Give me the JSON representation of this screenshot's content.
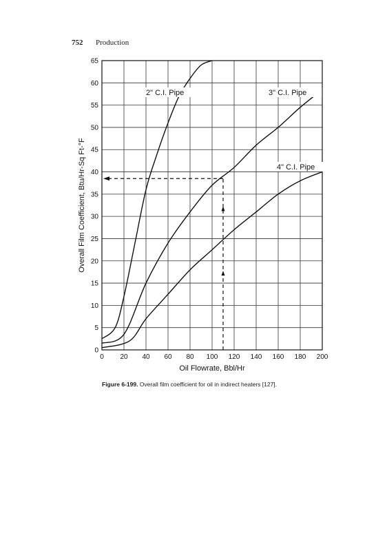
{
  "header": {
    "page_number": "752",
    "running_head": "Production"
  },
  "caption": {
    "label": "Figure 6-199.",
    "text": "Overall film coefficient for oil in indirect heaters [127]."
  },
  "chart_data": {
    "type": "line",
    "title": "",
    "xlabel": "Oil Flowrate, Bbl/Hr",
    "ylabel": "Overall Film Coefficient, Btu/Hr-Sq Ft-°F",
    "xlim": [
      0,
      200
    ],
    "ylim": [
      0,
      65
    ],
    "x_ticks": [
      0,
      20,
      40,
      60,
      80,
      100,
      120,
      140,
      160,
      180,
      200
    ],
    "y_ticks": [
      0,
      5,
      10,
      15,
      20,
      25,
      30,
      35,
      40,
      45,
      50,
      55,
      60,
      65
    ],
    "grid": true,
    "series": [
      {
        "name": "2\" C.I. Pipe",
        "x": [
          0,
          12,
          20,
          30,
          40,
          50,
          60,
          70,
          80,
          90,
          100
        ],
        "y": [
          2.5,
          5,
          12,
          24,
          36,
          44,
          51,
          57,
          61,
          64,
          65
        ]
      },
      {
        "name": "3\" C.I. Pipe",
        "x": [
          0,
          20,
          40,
          60,
          80,
          100,
          120,
          140,
          160,
          180,
          200
        ],
        "y": [
          1.5,
          3.5,
          15,
          24,
          31,
          37,
          41,
          46,
          50,
          54.5,
          58.5
        ]
      },
      {
        "name": "4\" C.I. Pipe",
        "x": [
          0,
          25,
          40,
          60,
          80,
          100,
          120,
          140,
          160,
          180,
          200
        ],
        "y": [
          0.5,
          2,
          7,
          12.5,
          18,
          22.5,
          27,
          31,
          35,
          38,
          40
        ]
      }
    ],
    "annotation": {
      "type": "dashed-guide",
      "x": 110,
      "y": 38.5
    }
  }
}
